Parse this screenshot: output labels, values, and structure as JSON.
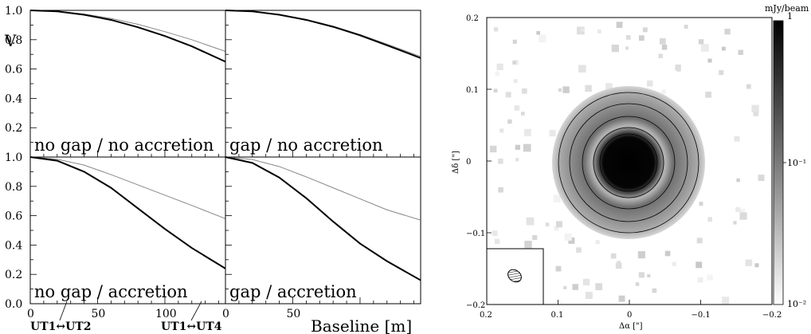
{
  "figure": {
    "left": {
      "y_label": "V",
      "x_label": "Baseline [m]",
      "y_ticks": [
        "0.0",
        "0.2",
        "0.4",
        "0.6",
        "0.8",
        "1.0"
      ],
      "x_ticks": [
        "0",
        "50",
        "100"
      ],
      "annotations": [
        "UT1↔UT2",
        "UT1↔UT4"
      ]
    },
    "right": {
      "x_label": "Δα [\"]",
      "y_label": "Δδ [\"]",
      "x_ticks": [
        "0.2",
        "0.1",
        "0",
        "−0.1",
        "−0.2"
      ],
      "y_ticks": [
        "0.2",
        "0.1",
        "0",
        "−0.1",
        "−0.2"
      ],
      "colorbar_unit": "mJy/beam",
      "colorbar_ticks": [
        "1",
        "10⁻¹",
        "10⁻²"
      ],
      "colormap": "grayscale",
      "colorbar_scale": "log"
    }
  },
  "chart_data": [
    {
      "type": "line",
      "title": "no gap / no accretion",
      "xlabel": "",
      "ylabel": "V",
      "xlim": [
        0,
        145
      ],
      "ylim": [
        0,
        1
      ],
      "x": [
        0,
        20,
        40,
        60,
        80,
        100,
        120,
        145
      ],
      "series": [
        {
          "values": [
            1.0,
            0.994,
            0.975,
            0.945,
            0.905,
            0.855,
            0.8,
            0.72
          ],
          "color": "#888888"
        },
        {
          "values": [
            1.0,
            0.993,
            0.97,
            0.935,
            0.885,
            0.825,
            0.755,
            0.65
          ],
          "color": "#000000"
        }
      ]
    },
    {
      "type": "line",
      "title": "gap / no accretion",
      "xlabel": "",
      "ylabel": "",
      "xlim": [
        0,
        145
      ],
      "ylim": [
        0,
        1
      ],
      "x": [
        0,
        20,
        40,
        60,
        80,
        100,
        120,
        145
      ],
      "series": [
        {
          "values": [
            1.0,
            0.993,
            0.972,
            0.938,
            0.892,
            0.835,
            0.77,
            0.685
          ],
          "color": "#888888"
        },
        {
          "values": [
            1.0,
            0.993,
            0.97,
            0.935,
            0.888,
            0.83,
            0.762,
            0.675
          ],
          "color": "#000000"
        }
      ]
    },
    {
      "type": "line",
      "title": "no gap / accretion",
      "xlabel": "",
      "ylabel": "",
      "xlim": [
        0,
        145
      ],
      "ylim": [
        0,
        1
      ],
      "x": [
        0,
        20,
        40,
        60,
        80,
        100,
        120,
        145
      ],
      "series": [
        {
          "values": [
            1.0,
            0.985,
            0.945,
            0.88,
            0.81,
            0.74,
            0.67,
            0.58
          ],
          "color": "#888888"
        },
        {
          "values": [
            1.0,
            0.975,
            0.9,
            0.79,
            0.65,
            0.51,
            0.38,
            0.24
          ],
          "color": "#000000"
        }
      ]
    },
    {
      "type": "line",
      "title": "gap / accretion",
      "xlabel": "Baseline [m]",
      "ylabel": "",
      "xlim": [
        0,
        145
      ],
      "ylim": [
        0,
        1
      ],
      "x": [
        0,
        20,
        40,
        60,
        80,
        100,
        120,
        145
      ],
      "series": [
        {
          "values": [
            1.0,
            0.983,
            0.935,
            0.865,
            0.79,
            0.715,
            0.64,
            0.57
          ],
          "color": "#888888"
        },
        {
          "values": [
            1.0,
            0.96,
            0.86,
            0.72,
            0.56,
            0.41,
            0.29,
            0.16
          ],
          "color": "#000000"
        }
      ]
    },
    {
      "type": "heatmap",
      "title": "",
      "xlabel": "Δα [\"]",
      "ylabel": "Δδ [\"]",
      "xlim": [
        0.2,
        -0.2
      ],
      "ylim": [
        -0.2,
        0.2
      ],
      "description_values": {
        "center_peak": 1.0,
        "ring_radius_arcsec": 0.06,
        "outer_radius_arcsec": 0.1
      }
    }
  ]
}
